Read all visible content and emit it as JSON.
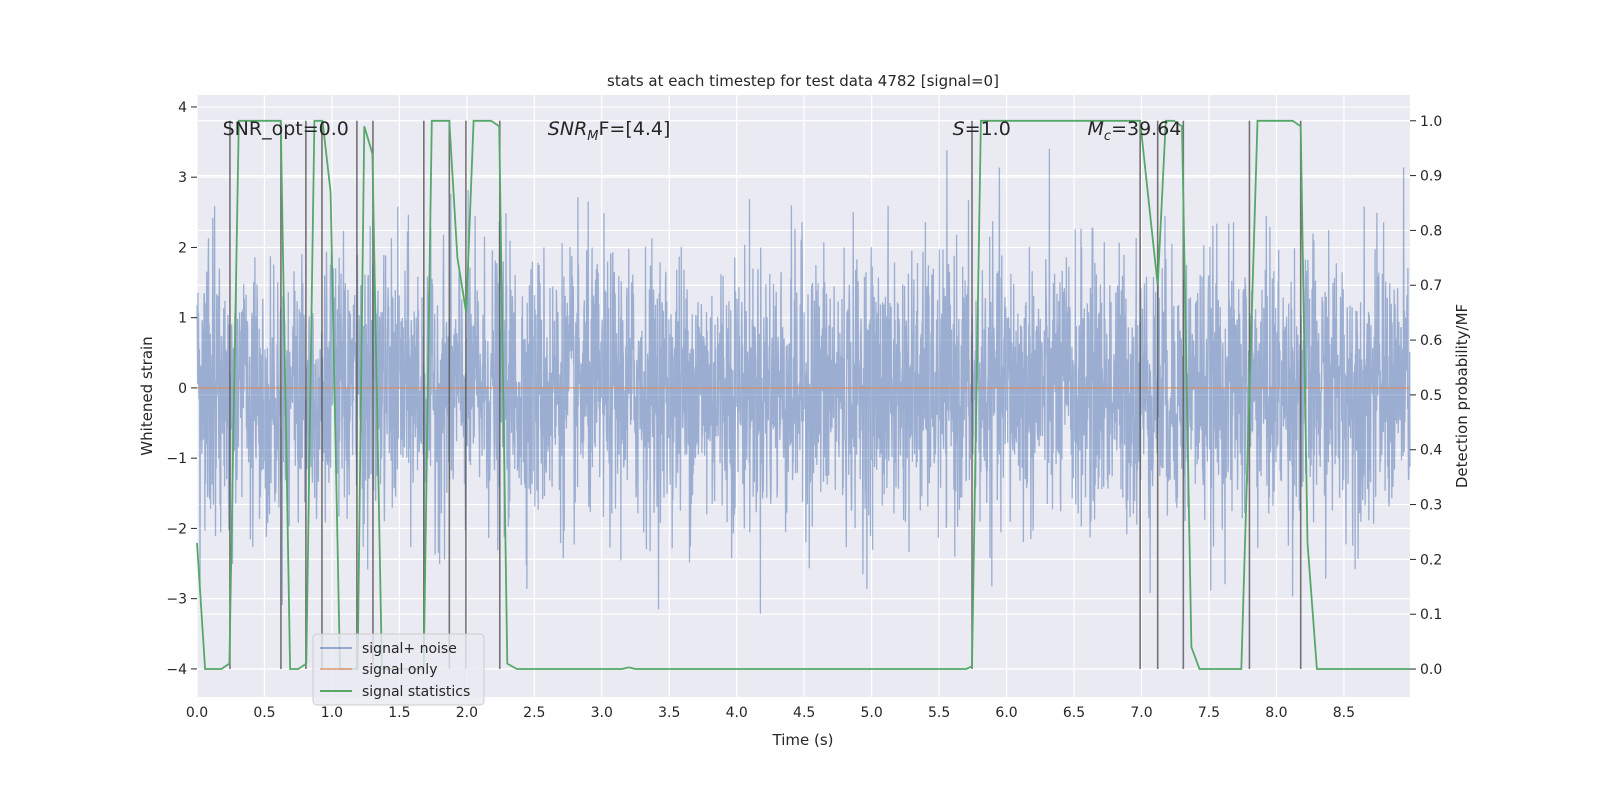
{
  "chart_data": {
    "type": "line",
    "title": "stats at each timestep for test data 4782 [signal=0]",
    "xlabel": "Time (s)",
    "ylabel": "Whitened strain",
    "ylabel_right": "Detection probability/MF",
    "xlim": [
      0,
      8.99
    ],
    "ylim": [
      -4.4,
      4.17
    ],
    "ylim_right": [
      -0.051,
      1.047
    ],
    "grid": true,
    "background": "#eaeaf2",
    "x_ticks": [
      "0.0",
      "0.5",
      "1.0",
      "1.5",
      "2.0",
      "2.5",
      "3.0",
      "3.5",
      "4.0",
      "4.5",
      "5.0",
      "5.5",
      "6.0",
      "6.5",
      "7.0",
      "7.5",
      "8.0",
      "8.5"
    ],
    "y_ticks": [
      "4",
      "3",
      "2",
      "1",
      "0",
      "−1",
      "−2",
      "−3",
      "−4"
    ],
    "y_ticks_right": [
      "1.0",
      "0.9",
      "0.8",
      "0.7",
      "0.6",
      "0.5",
      "0.4",
      "0.3",
      "0.2",
      "0.1",
      "0.0"
    ],
    "annotations": [
      {
        "text": "SNR_opt=0.0",
        "x": 0.19,
        "y": 3.8,
        "italic": false
      },
      {
        "text": "SNR",
        "sub": "M",
        "tail": "F=[4.4]",
        "x": 2.6,
        "y": 3.8,
        "italic": true
      },
      {
        "text": "S",
        "tail": "=1.0",
        "x": 5.6,
        "y": 3.8,
        "italic": true
      },
      {
        "text": "M",
        "sub": "c",
        "tail": "=39.64",
        "x": 6.6,
        "y": 3.8,
        "italic": true
      }
    ],
    "legend": {
      "position": "lower-left",
      "entries": [
        "signal+ noise",
        "signal only",
        "signal statistics"
      ]
    },
    "series": [
      {
        "name": "signal+ noise",
        "axis": "left",
        "color": "#4c72b0",
        "kind": "noisy strain, approx. ±3.8 peak"
      },
      {
        "name": "signal only",
        "axis": "left",
        "color": "#dd8452",
        "value": 0
      },
      {
        "name": "signal statistics",
        "axis": "right",
        "color": "#55a868",
        "points": [
          [
            0,
            0.23
          ],
          [
            0.06,
            0
          ],
          [
            0.18,
            0
          ],
          [
            0.24,
            0.01
          ],
          [
            0.31,
            1
          ],
          [
            0.62,
            1
          ],
          [
            0.69,
            0
          ],
          [
            0.75,
            0
          ],
          [
            0.81,
            0.01
          ],
          [
            0.87,
            1
          ],
          [
            0.93,
            1
          ],
          [
            0.99,
            0.87
          ],
          [
            1.06,
            0
          ],
          [
            1.19,
            0
          ],
          [
            1.24,
            0.99
          ],
          [
            1.3,
            0.94
          ],
          [
            1.37,
            0
          ],
          [
            1.68,
            0
          ],
          [
            1.74,
            1
          ],
          [
            1.87,
            1
          ],
          [
            1.93,
            0.75
          ],
          [
            1.995,
            0.65
          ],
          [
            2.05,
            1
          ],
          [
            2.18,
            1
          ],
          [
            2.24,
            0.99
          ],
          [
            2.3,
            0.01
          ],
          [
            2.37,
            0
          ],
          [
            3.15,
            0
          ],
          [
            3.2,
            0.003
          ],
          [
            3.25,
            0
          ],
          [
            5.7,
            0
          ],
          [
            5.744,
            0.005
          ],
          [
            5.81,
            1
          ],
          [
            6.99,
            1
          ],
          [
            7.12,
            0.7
          ],
          [
            7.18,
            1
          ],
          [
            7.24,
            1
          ],
          [
            7.3,
            0.99
          ],
          [
            7.37,
            0.04
          ],
          [
            7.43,
            0
          ],
          [
            7.74,
            0
          ],
          [
            7.86,
            1
          ],
          [
            8.12,
            1
          ],
          [
            8.18,
            0.99
          ],
          [
            8.23,
            0.23
          ],
          [
            8.3,
            0
          ],
          [
            8.99,
            0
          ]
        ]
      }
    ],
    "detection_markers": {
      "color": "#555555",
      "range": [
        0,
        1
      ],
      "x": [
        0.244,
        0.622,
        0.807,
        0.926,
        1.185,
        1.304,
        1.681,
        1.87,
        1.993,
        2.244,
        5.744,
        6.99,
        7.12,
        7.31,
        7.8,
        8.18
      ]
    }
  }
}
